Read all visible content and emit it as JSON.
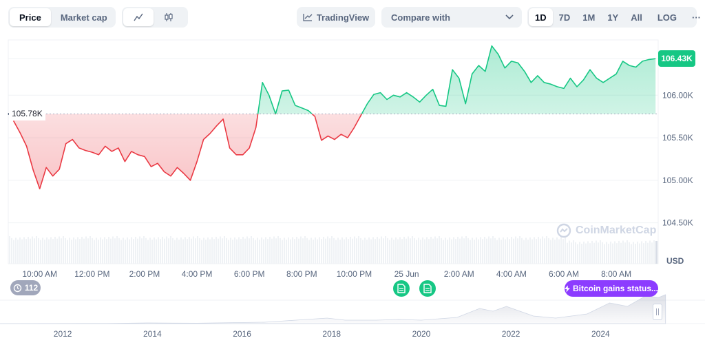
{
  "toolbar": {
    "view_tabs": [
      {
        "label": "Price",
        "active": true
      },
      {
        "label": "Market cap",
        "active": false
      }
    ],
    "chart_modes": [
      {
        "icon": "line-chart-icon",
        "active": true
      },
      {
        "icon": "candlestick-icon",
        "active": false
      }
    ],
    "tradingview_label": "TradingView",
    "compare_label": "Compare with",
    "ranges": [
      {
        "label": "1D",
        "active": true
      },
      {
        "label": "7D",
        "active": false
      },
      {
        "label": "1M",
        "active": false
      },
      {
        "label": "1Y",
        "active": false
      },
      {
        "label": "All",
        "active": false
      }
    ],
    "log_label": "LOG",
    "more_label": "···"
  },
  "chart_data": {
    "type": "line",
    "title": "",
    "xlabel": "",
    "ylabel": "USD",
    "currency": "USD",
    "x_ticks": [
      "10:00 AM",
      "12:00 PM",
      "2:00 PM",
      "4:00 PM",
      "6:00 PM",
      "8:00 PM",
      "10:00 PM",
      "25 Jun",
      "2:00 AM",
      "4:00 AM",
      "6:00 AM",
      "8:00 AM"
    ],
    "x_hours": [
      10,
      12,
      14,
      16,
      18,
      20,
      22,
      24,
      26,
      28,
      30,
      32
    ],
    "y_ticks": [
      "106.00K",
      "105.50K",
      "105.00K",
      "104.50K"
    ],
    "y_tick_values": [
      106000,
      105500,
      105000,
      104500
    ],
    "ylim": [
      104400,
      106650
    ],
    "xlim": [
      8.8,
      33.6
    ],
    "reference_value": 105780,
    "reference_label": "105.78K",
    "current_value": 106430,
    "current_label": "106.43K",
    "up_color": "#16c784",
    "down_color": "#ea3943",
    "series": [
      {
        "x": [
          9.0,
          9.25,
          9.5,
          9.75,
          10.0,
          10.25,
          10.5,
          10.75,
          11.0,
          11.25,
          11.5,
          11.75,
          12.0,
          12.25,
          12.5,
          12.75,
          13.0,
          13.25,
          13.5,
          13.75,
          14.0,
          14.25,
          14.5,
          14.75,
          15.0,
          15.25,
          15.5,
          15.75,
          16.0,
          16.25,
          16.5,
          16.75,
          17.0,
          17.25,
          17.5,
          17.75,
          18.0,
          18.25,
          18.5,
          18.75,
          19.0,
          19.25,
          19.5,
          19.75,
          20.0,
          20.25,
          20.5,
          20.75,
          21.0,
          21.25,
          21.5,
          21.75,
          22.0,
          22.25,
          22.5,
          22.75,
          23.0,
          23.25,
          23.5,
          23.75,
          24.0,
          24.25,
          24.5,
          24.75,
          25.0,
          25.25,
          25.5,
          25.75,
          26.0,
          26.25,
          26.5,
          26.75,
          27.0,
          27.25,
          27.5,
          27.75,
          28.0,
          28.25,
          28.5,
          28.75,
          29.0,
          29.25,
          29.5,
          29.75,
          30.0,
          30.25,
          30.5,
          30.75,
          31.0,
          31.25,
          31.5,
          31.75,
          32.0,
          32.25,
          32.5,
          32.75,
          33.0,
          33.25,
          33.5
        ],
        "values": [
          105700,
          105560,
          105400,
          105120,
          104900,
          105150,
          105050,
          105130,
          105430,
          105480,
          105380,
          105350,
          105330,
          105300,
          105400,
          105340,
          105380,
          105220,
          105340,
          105300,
          105280,
          105160,
          105200,
          105100,
          105050,
          105150,
          105080,
          105000,
          105220,
          105480,
          105550,
          105640,
          105720,
          105380,
          105300,
          105300,
          105380,
          105620,
          106150,
          106000,
          105780,
          106050,
          106060,
          105880,
          105850,
          105820,
          105750,
          105470,
          105520,
          105480,
          105540,
          105500,
          105620,
          105760,
          105900,
          106010,
          106030,
          105950,
          106000,
          105980,
          106030,
          105980,
          105920,
          106000,
          106070,
          105880,
          105870,
          106300,
          106200,
          105900,
          106250,
          106350,
          106280,
          106580,
          106480,
          106320,
          106400,
          106380,
          106280,
          106150,
          106230,
          106150,
          106130,
          106100,
          106080,
          106200,
          106100,
          106180,
          106300,
          106200,
          106150,
          106200,
          106250,
          106400,
          106350,
          106330,
          106400,
          106420,
          106430
        ]
      }
    ]
  },
  "navigator": {
    "year_labels": [
      "2012",
      "2014",
      "2016",
      "2018",
      "2020",
      "2022",
      "2024"
    ],
    "year_values": [
      2012,
      2014,
      2016,
      2018,
      2020,
      2022,
      2024
    ],
    "xlim": [
      2010.6,
      2025.5
    ]
  },
  "events": {
    "count_label": "112",
    "news_icons": [
      "news-icon",
      "news-icon"
    ],
    "status_label": "Bitcoin gains status..."
  },
  "watermark": "CoinMarketCap"
}
